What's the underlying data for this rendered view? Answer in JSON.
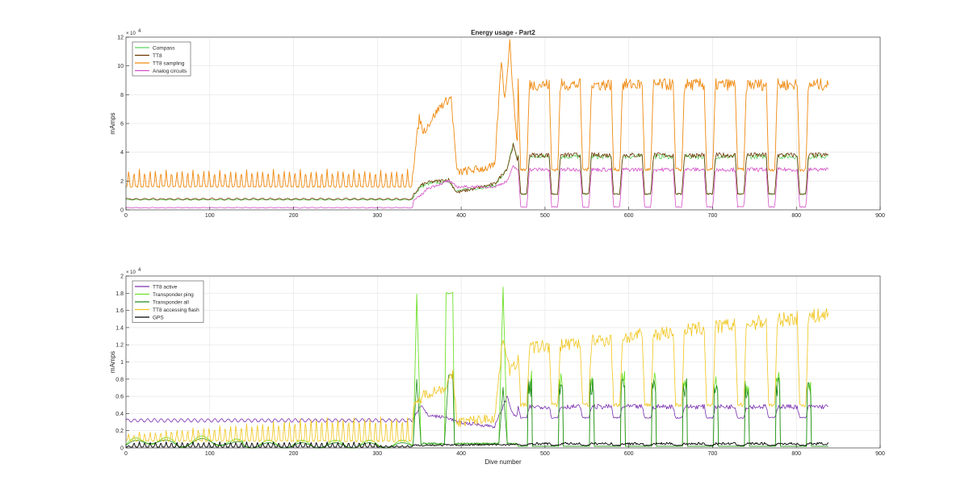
{
  "chart_data": [
    {
      "type": "line",
      "title": "Energy usage - Part2",
      "xlabel": "",
      "ylabel": "mAmps",
      "y_exponent_label": "× 10",
      "y_exponent_power": "4",
      "xlim": [
        0,
        900
      ],
      "ylim": [
        0,
        12
      ],
      "xticks": [
        0,
        100,
        200,
        300,
        400,
        500,
        600,
        700,
        800,
        900
      ],
      "yticks": [
        0,
        2,
        4,
        6,
        8,
        10,
        12
      ],
      "grid": true,
      "legend_position": "top-left",
      "series": [
        {
          "name": "Compass",
          "color": "#5fd35f",
          "width": 0.8,
          "model": {
            "base": 0.7,
            "waveAmp": 0.02,
            "wavePeriod": 10,
            "seg2": [
              [
                343,
                1.0
              ],
              [
                352,
                1.6
              ],
              [
                360,
                1.8
              ],
              [
                385,
                2.0
              ],
              [
                395,
                1.3
              ],
              [
                440,
                1.7
              ],
              [
                455,
                2.8
              ],
              [
                462,
                4.6
              ],
              [
                468,
                3.2
              ]
            ],
            "pulseLow": 1.1,
            "pulseHigh": 3.7,
            "noise": 0.25
          }
        },
        {
          "name": "TT8",
          "color": "#6b3400",
          "width": 0.8,
          "model": {
            "base": 0.75,
            "waveAmp": 0.05,
            "wavePeriod": 10,
            "seg2": [
              [
                343,
                1.0
              ],
              [
                352,
                1.7
              ],
              [
                360,
                1.9
              ],
              [
                385,
                2.1
              ],
              [
                395,
                1.2
              ],
              [
                440,
                1.8
              ],
              [
                455,
                2.9
              ],
              [
                462,
                4.5
              ],
              [
                468,
                3.3
              ]
            ],
            "pulseLow": 1.1,
            "pulseHigh": 3.8,
            "noise": 0.25
          }
        },
        {
          "name": "TT8 sampling",
          "color": "#ef8a10",
          "width": 0.9,
          "model": {
            "base": 1.6,
            "spikeAmp": 1.2,
            "spikePeriod": 6.4,
            "seg2": [
              [
                343,
                3.0
              ],
              [
                350,
                6.4
              ],
              [
                355,
                5.4
              ],
              [
                375,
                7.2
              ],
              [
                388,
                7.8
              ],
              [
                395,
                2.6
              ],
              [
                440,
                3.0
              ],
              [
                448,
                10.5
              ],
              [
                452,
                7.6
              ],
              [
                458,
                11.8
              ],
              [
                462,
                8.0
              ],
              [
                468,
                4.0
              ]
            ],
            "pulseLow": 2.8,
            "pulseHigh": 8.7,
            "noise": 0.6
          }
        },
        {
          "name": "Analog circuits",
          "color": "#d44fc8",
          "width": 0.8,
          "model": {
            "base": 0.15,
            "waveAmp": 0.02,
            "wavePeriod": 10,
            "seg2": [
              [
                343,
                0.6
              ],
              [
                352,
                1.0
              ],
              [
                360,
                1.5
              ],
              [
                385,
                2.0
              ],
              [
                395,
                1.6
              ],
              [
                440,
                1.6
              ],
              [
                455,
                2.0
              ],
              [
                462,
                3.0
              ],
              [
                468,
                2.8
              ]
            ],
            "pulseLow": 0.2,
            "pulseHigh": 2.8,
            "noise": 0.2
          }
        }
      ]
    },
    {
      "type": "line",
      "title": "",
      "xlabel": "Dive number",
      "ylabel": "mAmps",
      "y_exponent_label": "× 10",
      "y_exponent_power": "4",
      "xlim": [
        0,
        900
      ],
      "ylim": [
        0,
        2
      ],
      "xticks": [
        0,
        100,
        200,
        300,
        400,
        500,
        600,
        700,
        800,
        900
      ],
      "yticks": [
        0,
        0.2,
        0.4,
        0.6,
        0.8,
        1,
        1.2,
        1.4,
        1.6,
        1.8,
        2
      ],
      "grid": true,
      "legend_position": "top-left",
      "series": [
        {
          "name": "TT8 active",
          "color": "#7a2fb0",
          "width": 0.8,
          "model": {
            "base": 0.32,
            "waveAmp": 0.02,
            "wavePeriod": 8,
            "seg2": [
              [
                343,
                0.35
              ],
              [
                352,
                0.5
              ],
              [
                360,
                0.38
              ],
              [
                385,
                0.35
              ],
              [
                395,
                0.3
              ],
              [
                440,
                0.25
              ],
              [
                455,
                0.6
              ],
              [
                462,
                0.38
              ],
              [
                468,
                0.38
              ]
            ],
            "pulseLow": 0.35,
            "pulseHigh": 0.48,
            "noise": 0.04
          }
        },
        {
          "name": "Transponder ping",
          "color": "#6ee02a",
          "width": 0.9,
          "model": {
            "base": 0.04,
            "waveAmp": 0.05,
            "wavePeriod": 40,
            "seg2": [
              [
                343,
                0.1
              ],
              [
                347,
                1.78
              ],
              [
                352,
                0.05
              ],
              [
                380,
                0.05
              ],
              [
                382,
                1.8
              ],
              [
                390,
                1.8
              ],
              [
                392,
                0.05
              ],
              [
                445,
                0.05
              ],
              [
                450,
                1.88
              ],
              [
                455,
                0.05
              ],
              [
                468,
                0.05
              ]
            ],
            "pulseLow": 0.02,
            "pulseHigh": 0.9,
            "noise": 0.02,
            "squarePulse": true
          }
        },
        {
          "name": "Transponder all",
          "color": "#1e8a1e",
          "width": 0.8,
          "model": {
            "base": 0.03,
            "waveAmp": 0.03,
            "wavePeriod": 40,
            "seg2": [
              [
                343,
                0.1
              ],
              [
                347,
                0.8
              ],
              [
                352,
                0.05
              ],
              [
                380,
                0.05
              ],
              [
                385,
                0.85
              ],
              [
                390,
                0.85
              ],
              [
                392,
                0.05
              ],
              [
                445,
                0.05
              ],
              [
                450,
                0.7
              ],
              [
                455,
                0.05
              ],
              [
                468,
                0.05
              ]
            ],
            "pulseLow": 0.02,
            "pulseHigh": 0.82,
            "noise": 0.02,
            "squarePulse": true
          }
        },
        {
          "name": "TT8 accessing flash",
          "color": "#f0c419",
          "width": 0.8,
          "model": {
            "base": 0.08,
            "spikeAmp": 0.28,
            "spikePeriod": 6.4,
            "seg2": [
              [
                343,
                0.45
              ],
              [
                355,
                0.62
              ],
              [
                380,
                0.7
              ],
              [
                390,
                0.85
              ],
              [
                395,
                0.3
              ],
              [
                440,
                0.35
              ],
              [
                450,
                1.3
              ],
              [
                458,
                0.9
              ],
              [
                468,
                1.0
              ]
            ],
            "pulseLow": 0.5,
            "pulseHigh": 1.35,
            "noise": 0.12,
            "ramp": true
          }
        },
        {
          "name": "GPS",
          "color": "#000000",
          "width": 0.9,
          "model": {
            "base": 0.01,
            "spikeAmp": 0.06,
            "spikePeriod": 6.4,
            "seg2": [
              [
                343,
                0.03
              ],
              [
                468,
                0.04
              ]
            ],
            "pulseLow": 0.03,
            "pulseHigh": 0.05,
            "noise": 0.02,
            "gpsSpikes": true
          }
        }
      ]
    }
  ]
}
